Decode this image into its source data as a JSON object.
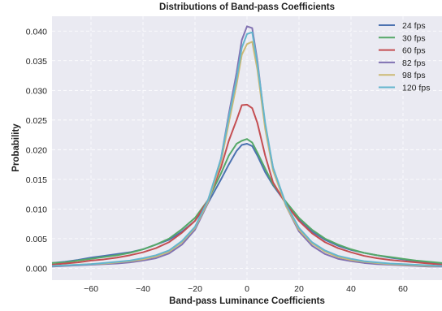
{
  "chart_data": {
    "type": "line",
    "title": "Distributions of Band-pass Coefficients",
    "xlabel": "Band-pass Luminance Coefficients",
    "ylabel": "Probability",
    "xlim": [
      -75,
      75
    ],
    "ylim": [
      -0.002,
      0.0425
    ],
    "xticks": [
      -60,
      -40,
      -20,
      0,
      20,
      40,
      60
    ],
    "xtick_labels": [
      "−60",
      "−40",
      "−20",
      "0",
      "20",
      "40",
      "60"
    ],
    "yticks": [
      0.0,
      0.005,
      0.01,
      0.015,
      0.02,
      0.025,
      0.03,
      0.035,
      0.04
    ],
    "ytick_labels": [
      "0.000",
      "0.005",
      "0.010",
      "0.015",
      "0.020",
      "0.025",
      "0.030",
      "0.035",
      "0.040"
    ],
    "grid": true,
    "background": "#eaeaf2",
    "legend_position": "top-right",
    "x": [
      -75,
      -70,
      -65,
      -60,
      -55,
      -50,
      -45,
      -40,
      -35,
      -30,
      -25,
      -20,
      -15,
      -10,
      -7,
      -4,
      -2,
      0,
      2,
      4,
      7,
      10,
      15,
      20,
      25,
      30,
      35,
      40,
      45,
      50,
      55,
      60,
      65,
      70,
      75
    ],
    "series": [
      {
        "name": "24 fps",
        "color": "#4c72b0",
        "values": [
          0.0009,
          0.0011,
          0.0014,
          0.0018,
          0.0021,
          0.0024,
          0.0027,
          0.0032,
          0.004,
          0.0048,
          0.0062,
          0.008,
          0.011,
          0.015,
          0.0175,
          0.0198,
          0.0208,
          0.021,
          0.0206,
          0.019,
          0.0162,
          0.014,
          0.011,
          0.0082,
          0.0062,
          0.0048,
          0.0038,
          0.0031,
          0.0026,
          0.0022,
          0.0018,
          0.0015,
          0.0012,
          0.001,
          0.0008
        ]
      },
      {
        "name": "30 fps",
        "color": "#55a868",
        "values": [
          0.0009,
          0.001,
          0.0013,
          0.0016,
          0.0019,
          0.0022,
          0.0026,
          0.0032,
          0.004,
          0.005,
          0.0066,
          0.0085,
          0.0115,
          0.016,
          0.019,
          0.021,
          0.0215,
          0.0218,
          0.0212,
          0.0195,
          0.0168,
          0.0142,
          0.0112,
          0.0085,
          0.0065,
          0.005,
          0.004,
          0.0032,
          0.0026,
          0.0022,
          0.0019,
          0.0016,
          0.0013,
          0.0011,
          0.0009
        ]
      },
      {
        "name": "60 fps",
        "color": "#c44e52",
        "values": [
          0.0006,
          0.0008,
          0.001,
          0.0013,
          0.0015,
          0.0018,
          0.0022,
          0.0027,
          0.0034,
          0.0044,
          0.006,
          0.008,
          0.0115,
          0.017,
          0.0215,
          0.025,
          0.0275,
          0.0276,
          0.027,
          0.0245,
          0.019,
          0.0145,
          0.0108,
          0.008,
          0.0059,
          0.0044,
          0.0034,
          0.0027,
          0.0021,
          0.0017,
          0.0014,
          0.0012,
          0.001,
          0.0008,
          0.0006
        ]
      },
      {
        "name": "82 fps",
        "color": "#8172b2",
        "values": [
          0.0003,
          0.0004,
          0.0005,
          0.0006,
          0.0007,
          0.0008,
          0.001,
          0.0013,
          0.0017,
          0.0025,
          0.004,
          0.0065,
          0.011,
          0.0185,
          0.026,
          0.033,
          0.0385,
          0.0408,
          0.0405,
          0.035,
          0.024,
          0.017,
          0.0105,
          0.0062,
          0.0038,
          0.0024,
          0.0016,
          0.0012,
          0.0009,
          0.0007,
          0.0006,
          0.0005,
          0.0004,
          0.0003,
          0.0003
        ]
      },
      {
        "name": "98 fps",
        "color": "#ccb974",
        "values": [
          0.0004,
          0.0005,
          0.0006,
          0.0007,
          0.0008,
          0.001,
          0.0012,
          0.0015,
          0.002,
          0.0028,
          0.0044,
          0.0068,
          0.0112,
          0.018,
          0.0245,
          0.031,
          0.036,
          0.0378,
          0.0382,
          0.0335,
          0.0235,
          0.0165,
          0.0105,
          0.0065,
          0.0042,
          0.0028,
          0.0019,
          0.0014,
          0.0011,
          0.0009,
          0.0007,
          0.0006,
          0.0005,
          0.0004,
          0.0004
        ]
      },
      {
        "name": "120 fps",
        "color": "#64b5cd",
        "values": [
          0.0004,
          0.0005,
          0.0006,
          0.0007,
          0.0009,
          0.0011,
          0.0013,
          0.0017,
          0.0022,
          0.003,
          0.0046,
          0.007,
          0.0115,
          0.0185,
          0.0255,
          0.032,
          0.0372,
          0.0395,
          0.0398,
          0.0345,
          0.0245,
          0.017,
          0.0108,
          0.0068,
          0.0044,
          0.003,
          0.0021,
          0.0016,
          0.0012,
          0.001,
          0.0008,
          0.0007,
          0.0006,
          0.0005,
          0.0004
        ]
      }
    ]
  }
}
